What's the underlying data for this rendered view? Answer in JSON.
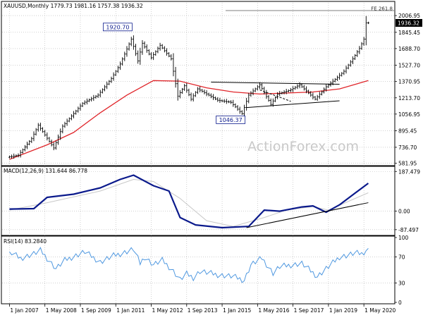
{
  "colors": {
    "background": "#ffffff",
    "frame": "#000000",
    "grid": "#b4b4b4",
    "up_bar": "#000000",
    "down_bar": "#000000",
    "ma": "#e0262b",
    "macd": "#0b1a8c",
    "signal": "#c8c8c8",
    "rsi": "#4f98e0",
    "trendline": "#000000",
    "watermark": "#c9c9c9",
    "price_tag_bg": "#000000",
    "price_tag_text": "#ffffff",
    "label_box_border": "#0b1a8c",
    "label_box_text": "#0b1a8c"
  },
  "chart_data": [
    {
      "type": "candlestick",
      "panel": "price",
      "title": "XAUUSD,Monthly  1779.73 1981.16 1757.38 1936.32",
      "watermark": "ActionForex.com",
      "yticks": [
        581.95,
        736.7,
        895.45,
        1056.95,
        1213.7,
        1370.95,
        1527.7,
        1688.7,
        1845.45,
        2006.95
      ],
      "ytick_labels": [
        "581.95",
        "736.70",
        "895.45",
        "1056.95",
        "1213.70",
        "1370.95",
        "1527.70",
        "1688.70",
        "1845.45",
        "2006.95"
      ],
      "ylim": [
        580,
        2062
      ],
      "current_price": 1936.32,
      "current_price_label": "1936.32",
      "fe_line": {
        "value": 2055,
        "label": "FE 261.8"
      },
      "annotations": [
        {
          "label": "1920.70",
          "date": "2011-09",
          "value": 1920.7
        },
        {
          "label": "1046.37",
          "date": "2015-12",
          "value": 1046.37
        }
      ],
      "bars_ohlc": [],
      "anchor_prices": [
        [
          "2007-01",
          640
        ],
        [
          "2007-06",
          660
        ],
        [
          "2007-12",
          820
        ],
        [
          "2008-03",
          950
        ],
        [
          "2008-10",
          730
        ],
        [
          "2009-02",
          940
        ],
        [
          "2009-11",
          1160
        ],
        [
          "2010-06",
          1240
        ],
        [
          "2010-12",
          1400
        ],
        [
          "2011-04",
          1540
        ],
        [
          "2011-09",
          1780
        ],
        [
          "2011-12",
          1570
        ],
        [
          "2012-02",
          1740
        ],
        [
          "2012-06",
          1600
        ],
        [
          "2012-10",
          1720
        ],
        [
          "2013-03",
          1590
        ],
        [
          "2013-06",
          1230
        ],
        [
          "2013-09",
          1330
        ],
        [
          "2013-12",
          1200
        ],
        [
          "2014-03",
          1300
        ],
        [
          "2014-12",
          1190
        ],
        [
          "2015-06",
          1170
        ],
        [
          "2015-11",
          1060
        ],
        [
          "2016-02",
          1240
        ],
        [
          "2016-07",
          1340
        ],
        [
          "2016-12",
          1150
        ],
        [
          "2017-03",
          1250
        ],
        [
          "2017-09",
          1290
        ],
        [
          "2018-01",
          1340
        ],
        [
          "2018-08",
          1200
        ],
        [
          "2019-01",
          1320
        ],
        [
          "2019-06",
          1410
        ],
        [
          "2019-09",
          1470
        ],
        [
          "2020-01",
          1590
        ],
        [
          "2020-04",
          1690
        ],
        [
          "2020-06",
          1780
        ],
        [
          "2020-07",
          1936
        ]
      ],
      "ma_series": [
        [
          "2007-01",
          620
        ],
        [
          "2008-06",
          760
        ],
        [
          "2009-06",
          880
        ],
        [
          "2010-06",
          1070
        ],
        [
          "2011-06",
          1240
        ],
        [
          "2012-06",
          1380
        ],
        [
          "2013-06",
          1375
        ],
        [
          "2014-06",
          1310
        ],
        [
          "2015-06",
          1270
        ],
        [
          "2016-06",
          1250
        ],
        [
          "2017-06",
          1260
        ],
        [
          "2018-06",
          1270
        ],
        [
          "2019-06",
          1300
        ],
        [
          "2020-07",
          1380
        ]
      ],
      "trendlines": [
        {
          "from": [
            "2014-08",
            1365
          ],
          "to": [
            "2019-06",
            1345
          ]
        },
        {
          "from": [
            "2015-12",
            1120
          ],
          "to": [
            "2019-06",
            1185
          ]
        },
        {
          "from": [
            "2016-06",
            1290
          ],
          "to": [
            "2017-08",
            1180
          ],
          "dashed": true
        }
      ]
    },
    {
      "type": "line",
      "panel": "macd",
      "title": "MACD(12,26,9) 131.644 86.778",
      "yticks": [
        187.479,
        0.0,
        -87.497
      ],
      "ytick_labels": [
        "187.479",
        "0.00",
        "-87.497"
      ],
      "ylim": [
        -108,
        205
      ],
      "series": [
        {
          "name": "MACD",
          "values": [
            [
              "2007-01",
              10
            ],
            [
              "2007-12",
              12
            ],
            [
              "2008-06",
              65
            ],
            [
              "2009-06",
              80
            ],
            [
              "2010-06",
              110
            ],
            [
              "2011-03",
              150
            ],
            [
              "2011-09",
              170
            ],
            [
              "2012-06",
              120
            ],
            [
              "2013-01",
              95
            ],
            [
              "2013-06",
              -30
            ],
            [
              "2014-01",
              -65
            ],
            [
              "2015-01",
              -78
            ],
            [
              "2016-01",
              -72
            ],
            [
              "2016-08",
              5
            ],
            [
              "2017-03",
              0
            ],
            [
              "2018-01",
              20
            ],
            [
              "2018-06",
              25
            ],
            [
              "2018-12",
              -5
            ],
            [
              "2019-06",
              30
            ],
            [
              "2020-01",
              85
            ],
            [
              "2020-07",
              131.644
            ]
          ]
        },
        {
          "name": "Signal",
          "values": [
            [
              "2007-01",
              5
            ],
            [
              "2008-06",
              40
            ],
            [
              "2010-06",
              95
            ],
            [
              "2011-09",
              150
            ],
            [
              "2012-06",
              140
            ],
            [
              "2013-06",
              60
            ],
            [
              "2014-06",
              -45
            ],
            [
              "2015-06",
              -72
            ],
            [
              "2016-08",
              -30
            ],
            [
              "2017-06",
              5
            ],
            [
              "2018-06",
              22
            ],
            [
              "2019-01",
              5
            ],
            [
              "2019-12",
              55
            ],
            [
              "2020-07",
              86.778
            ]
          ]
        }
      ],
      "trendline": {
        "from": [
          "2015-12",
          -78
        ],
        "to": [
          "2020-07",
          40
        ]
      }
    },
    {
      "type": "line",
      "panel": "rsi",
      "title": "RSI(14) 83.2840",
      "yticks": [
        100,
        70,
        30,
        0
      ],
      "ytick_labels": [
        "100",
        "70",
        "30",
        "0"
      ],
      "ylim": [
        0,
        100
      ],
      "levels": [
        70,
        30
      ],
      "series": [
        {
          "name": "RSI",
          "values": [
            [
              "2007-01",
              78
            ],
            [
              "2007-06",
              68
            ],
            [
              "2007-12",
              75
            ],
            [
              "2008-03",
              80
            ],
            [
              "2008-10",
              52
            ],
            [
              "2009-02",
              65
            ],
            [
              "2009-11",
              78
            ],
            [
              "2010-06",
              62
            ],
            [
              "2010-12",
              72
            ],
            [
              "2011-04",
              76
            ],
            [
              "2011-09",
              82
            ],
            [
              "2011-12",
              60
            ],
            [
              "2012-02",
              70
            ],
            [
              "2012-06",
              58
            ],
            [
              "2012-10",
              65
            ],
            [
              "2013-03",
              48
            ],
            [
              "2013-06",
              35
            ],
            [
              "2013-09",
              44
            ],
            [
              "2013-12",
              38
            ],
            [
              "2014-03",
              48
            ],
            [
              "2014-12",
              42
            ],
            [
              "2015-06",
              40
            ],
            [
              "2015-11",
              34
            ],
            [
              "2016-02",
              58
            ],
            [
              "2016-07",
              68
            ],
            [
              "2016-12",
              45
            ],
            [
              "2017-03",
              55
            ],
            [
              "2017-09",
              58
            ],
            [
              "2018-01",
              60
            ],
            [
              "2018-08",
              40
            ],
            [
              "2019-01",
              55
            ],
            [
              "2019-06",
              70
            ],
            [
              "2019-09",
              72
            ],
            [
              "2020-01",
              76
            ],
            [
              "2020-04",
              75
            ],
            [
              "2020-07",
              83.284
            ]
          ]
        }
      ]
    }
  ],
  "x_axis": {
    "start": "2006-10",
    "end": "2021-06",
    "tick_labels": [
      {
        "date": "2007-01",
        "label": "1 Jan 2007"
      },
      {
        "date": "2008-05",
        "label": "1 May 2008"
      },
      {
        "date": "2009-09",
        "label": "1 Sep 2009"
      },
      {
        "date": "2011-01",
        "label": "1 Jan 2011"
      },
      {
        "date": "2012-05",
        "label": "1 May 2012"
      },
      {
        "date": "2013-09",
        "label": "1 Sep 2013"
      },
      {
        "date": "2015-01",
        "label": "1 Jan 2015"
      },
      {
        "date": "2016-05",
        "label": "1 May 2016"
      },
      {
        "date": "2017-09",
        "label": "1 Sep 2017"
      },
      {
        "date": "2019-01",
        "label": "1 Jan 2019"
      },
      {
        "date": "2020-05",
        "label": "1 May 2020"
      }
    ]
  }
}
